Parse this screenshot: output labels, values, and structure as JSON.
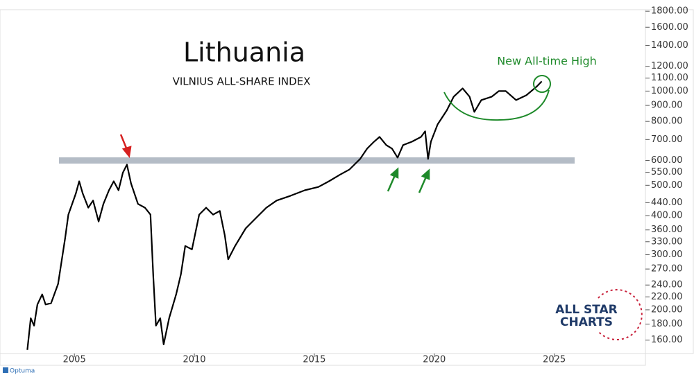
{
  "chart_data": {
    "type": "line",
    "title": "Lithuania",
    "subtitle": "VILNIUS ALL-SHARE INDEX",
    "annotation": "New All-time High",
    "logo": {
      "line1": "ALL STAR",
      "line2": "CHARTS"
    },
    "platform": "Optuma",
    "color": "#000000",
    "log_scale": true,
    "support_level": 600,
    "x": [
      2003.04,
      2003.18,
      2003.32,
      2003.46,
      2003.66,
      2003.8,
      2004.03,
      2004.32,
      2004.61,
      2004.75,
      2005.06,
      2005.2,
      2005.35,
      2005.58,
      2005.78,
      2006.01,
      2006.21,
      2006.44,
      2006.64,
      2006.84,
      2007.02,
      2007.19,
      2007.36,
      2007.65,
      2007.94,
      2008.17,
      2008.29,
      2008.4,
      2008.58,
      2008.72,
      2008.95,
      2009.24,
      2009.44,
      2009.62,
      2009.9,
      2010.2,
      2010.49,
      2010.78,
      2011.06,
      2011.27,
      2011.41,
      2011.7,
      2012.14,
      2012.57,
      2013.0,
      2013.43,
      2014.01,
      2014.6,
      2015.17,
      2015.61,
      2016.04,
      2016.47,
      2016.91,
      2017.2,
      2017.49,
      2017.72,
      2018.0,
      2018.24,
      2018.47,
      2018.7,
      2019.07,
      2019.45,
      2019.62,
      2019.74,
      2019.86,
      2020.14,
      2020.52,
      2020.81,
      2021.18,
      2021.47,
      2021.67,
      2021.96,
      2022.4,
      2022.69,
      2022.98,
      2023.41,
      2023.84,
      2024.28,
      2024.48
    ],
    "values": [
      149,
      188,
      178,
      208,
      224,
      208,
      210,
      242,
      337,
      403,
      470,
      515,
      470,
      424,
      447,
      383,
      436,
      482,
      515,
      482,
      548,
      582,
      507,
      436,
      424,
      403,
      255,
      178,
      188,
      155,
      188,
      224,
      260,
      320,
      312,
      403,
      424,
      403,
      414,
      346,
      290,
      320,
      364,
      393,
      424,
      447,
      463,
      482,
      494,
      515,
      539,
      562,
      607,
      655,
      689,
      714,
      672,
      655,
      613,
      672,
      689,
      714,
      744,
      607,
      689,
      783,
      867,
      960,
      1020,
      960,
      858,
      936,
      960,
      1000,
      1000,
      936,
      970,
      1036,
      1074
    ],
    "xlim": [
      2001.9,
      2028.8
    ],
    "xticks": [
      2005,
      2010,
      2015,
      2020,
      2025
    ],
    "ylim": [
      145,
      1820
    ],
    "yticks": [
      {
        "value": 160,
        "label": "160.00"
      },
      {
        "value": 180,
        "label": "180.00"
      },
      {
        "value": 200,
        "label": "200.00"
      },
      {
        "value": 220,
        "label": "220.00"
      },
      {
        "value": 240,
        "label": "240.00"
      },
      {
        "value": 270,
        "label": "270.00"
      },
      {
        "value": 300,
        "label": "300.00"
      },
      {
        "value": 330,
        "label": "330.00"
      },
      {
        "value": 360,
        "label": "360.00"
      },
      {
        "value": 400,
        "label": "400.00"
      },
      {
        "value": 440,
        "label": "440.00"
      },
      {
        "value": 500,
        "label": "500.00"
      },
      {
        "value": 550,
        "label": "550.00"
      },
      {
        "value": 600,
        "label": "600.00"
      },
      {
        "value": 700,
        "label": "700.00"
      },
      {
        "value": 800,
        "label": "800.00"
      },
      {
        "value": 900,
        "label": "900.00"
      },
      {
        "value": 1000,
        "label": "1000.00"
      },
      {
        "value": 1100,
        "label": "1100.00"
      },
      {
        "value": 1200,
        "label": "1200.00"
      },
      {
        "value": 1400,
        "label": "1400.00"
      },
      {
        "value": 1600,
        "label": "1600.00"
      },
      {
        "value": 1800,
        "label": "1800.00"
      }
    ]
  }
}
